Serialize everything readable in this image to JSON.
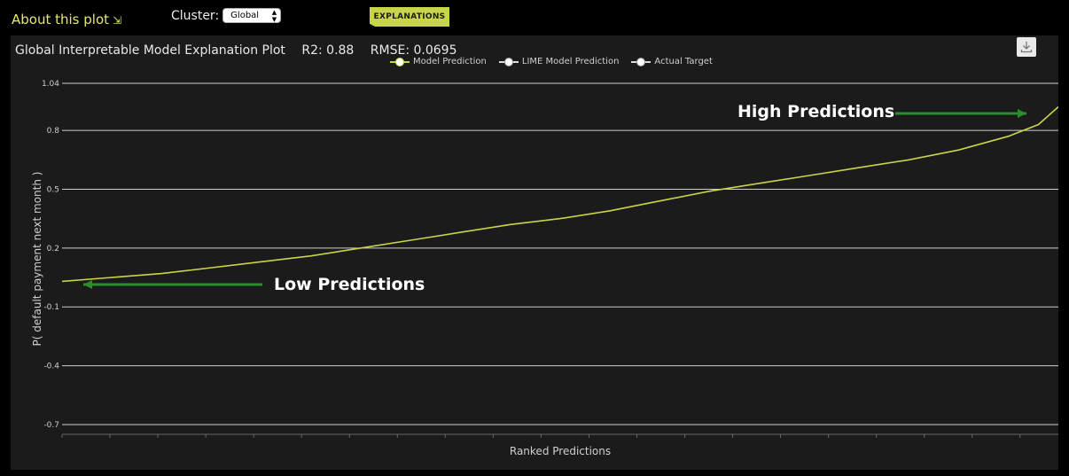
{
  "header": {
    "about_label": "About this plot",
    "about_icon": "arrow-down-right-icon",
    "cluster_label": "Cluster:",
    "cluster_value": "Global",
    "explanations_label": "EXPLANATIONS"
  },
  "plot": {
    "title": "Global Interpretable Model Explanation Plot",
    "r2": "R2: 0.88",
    "rmse": "RMSE: 0.0695",
    "download_icon": "download-icon"
  },
  "annotations": {
    "high": "High Predictions",
    "low": "Low Predictions"
  },
  "chart_data": {
    "type": "line",
    "xlabel": "Ranked Predictions",
    "ylabel": "P( default payment next month )",
    "ylim": [
      -0.75,
      1.04
    ],
    "yticks": [
      1.04,
      0.8,
      0.5,
      0.2,
      -0.1,
      -0.4,
      -0.7
    ],
    "ytick_labels": [
      "1.04",
      "0.8",
      "0.5",
      "0.2",
      "-0.1",
      "-0.4",
      "-0.7"
    ],
    "grid": true,
    "legend": "top-center",
    "series": [
      {
        "name": "Model Prediction",
        "color": "#c8d44a"
      },
      {
        "name": "LIME Model Prediction",
        "color": "#ffffff"
      },
      {
        "name": "Actual Target",
        "color": "#ffffff"
      }
    ],
    "model_prediction": {
      "x": [
        0,
        0.05,
        0.1,
        0.15,
        0.2,
        0.25,
        0.3,
        0.35,
        0.4,
        0.45,
        0.5,
        0.55,
        0.6,
        0.65,
        0.7,
        0.75,
        0.8,
        0.85,
        0.9,
        0.95,
        0.98,
        1.0
      ],
      "y": [
        0.03,
        0.05,
        0.07,
        0.1,
        0.13,
        0.16,
        0.2,
        0.24,
        0.28,
        0.32,
        0.35,
        0.39,
        0.44,
        0.49,
        0.53,
        0.57,
        0.61,
        0.65,
        0.7,
        0.77,
        0.83,
        0.92
      ]
    },
    "annotation_colors": {
      "arrow": "#2a8f2a"
    }
  }
}
